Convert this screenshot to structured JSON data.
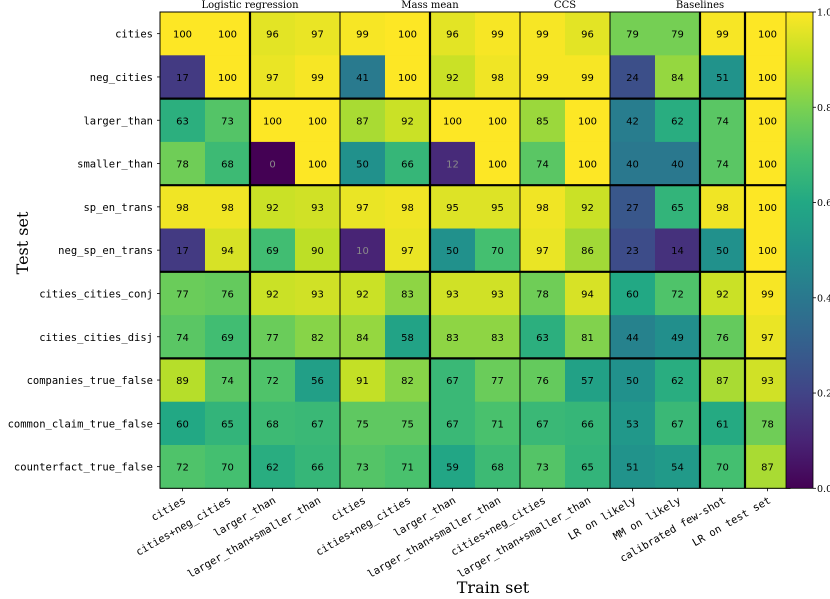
{
  "chart_data": {
    "type": "heatmap",
    "xlabel": "Train set",
    "ylabel": "Test set",
    "colormap": "viridis",
    "colorbar": {
      "range": [
        0,
        1
      ],
      "ticks": [
        "0.0",
        "0.2",
        "0.4",
        "0.6",
        "0.8",
        "1.0"
      ],
      "tick_values": [
        0,
        0.2,
        0.4,
        0.6,
        0.8,
        1.0
      ]
    },
    "rows": [
      "cities",
      "neg_cities",
      "larger_than",
      "smaller_than",
      "sp_en_trans",
      "neg_sp_en_trans",
      "cities_cities_conj",
      "cities_cities_disj",
      "companies_true_false",
      "common_claim_true_false",
      "counterfact_true_false"
    ],
    "row_groups": [
      2,
      2,
      2,
      2,
      3
    ],
    "panels": [
      {
        "title": "Logistic regression",
        "columns": [
          "cities",
          "cities+neg_cities",
          "larger_than",
          "larger_than+smaller_than"
        ],
        "col_groups": [
          2,
          2
        ],
        "values": [
          [
            100,
            100,
            96,
            97
          ],
          [
            17,
            100,
            97,
            99
          ],
          [
            63,
            73,
            100,
            100
          ],
          [
            78,
            68,
            0,
            100
          ],
          [
            98,
            98,
            92,
            93
          ],
          [
            17,
            94,
            69,
            90
          ],
          [
            77,
            76,
            92,
            93
          ],
          [
            74,
            69,
            77,
            82
          ],
          [
            89,
            74,
            72,
            56
          ],
          [
            60,
            65,
            68,
            67
          ],
          [
            72,
            70,
            62,
            66
          ]
        ]
      },
      {
        "title": "Mass mean",
        "columns": [
          "cities",
          "cities+neg_cities",
          "larger_than",
          "larger_than+smaller_than"
        ],
        "col_groups": [
          2,
          2
        ],
        "values": [
          [
            99,
            100,
            96,
            99
          ],
          [
            41,
            100,
            92,
            98
          ],
          [
            87,
            92,
            100,
            100
          ],
          [
            50,
            66,
            12,
            100
          ],
          [
            97,
            98,
            95,
            95
          ],
          [
            10,
            97,
            50,
            70
          ],
          [
            92,
            83,
            93,
            93
          ],
          [
            84,
            58,
            83,
            83
          ],
          [
            91,
            82,
            67,
            77
          ],
          [
            75,
            75,
            67,
            71
          ],
          [
            73,
            71,
            59,
            68
          ]
        ]
      },
      {
        "title": "CCS",
        "columns": [
          "cities+neg_cities",
          "larger_than+smaller_than"
        ],
        "col_groups": [
          2
        ],
        "values": [
          [
            99,
            96
          ],
          [
            99,
            99
          ],
          [
            85,
            100
          ],
          [
            74,
            100
          ],
          [
            98,
            92
          ],
          [
            97,
            86
          ],
          [
            78,
            94
          ],
          [
            63,
            81
          ],
          [
            76,
            57
          ],
          [
            67,
            66
          ],
          [
            73,
            65
          ]
        ]
      },
      {
        "title": "Baselines",
        "columns": [
          "LR on likely",
          "MM on likely",
          "calibrated few-shot",
          "LR on test set"
        ],
        "col_groups": [
          2,
          1,
          1
        ],
        "values": [
          [
            79,
            79,
            99,
            100
          ],
          [
            24,
            84,
            51,
            100
          ],
          [
            42,
            62,
            74,
            100
          ],
          [
            40,
            40,
            74,
            100
          ],
          [
            27,
            65,
            98,
            100
          ],
          [
            23,
            14,
            50,
            100
          ],
          [
            60,
            72,
            92,
            99
          ],
          [
            44,
            49,
            76,
            97
          ],
          [
            50,
            62,
            87,
            93
          ],
          [
            53,
            67,
            61,
            78
          ],
          [
            51,
            54,
            70,
            87
          ]
        ]
      }
    ]
  }
}
